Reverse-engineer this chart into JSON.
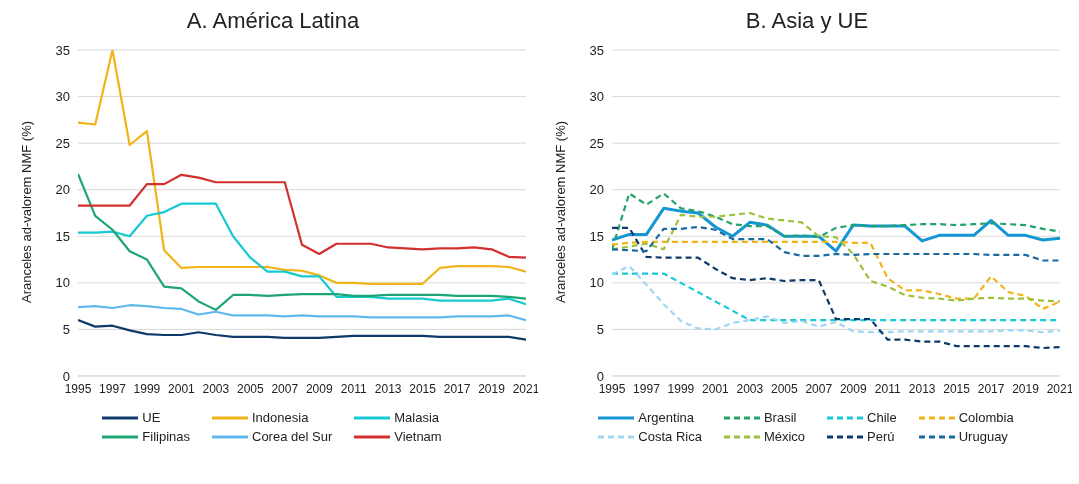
{
  "chart_data": [
    {
      "type": "line",
      "title": "A. América Latina",
      "ylabel": "Aranceles ad-valorem NMF (%)",
      "x": [
        1995,
        1996,
        1997,
        1998,
        1999,
        2000,
        2001,
        2002,
        2003,
        2004,
        2005,
        2006,
        2007,
        2008,
        2009,
        2010,
        2011,
        2012,
        2013,
        2014,
        2015,
        2016,
        2017,
        2018,
        2019,
        2020,
        2021
      ],
      "xlim": [
        1995,
        2021
      ],
      "xticks": [
        1995,
        1997,
        1999,
        2001,
        2003,
        2005,
        2007,
        2009,
        2011,
        2013,
        2015,
        2017,
        2019,
        2021
      ],
      "ylim": [
        0,
        35
      ],
      "yticks": [
        0,
        5,
        10,
        15,
        20,
        25,
        30,
        35
      ],
      "grid": "y",
      "legend": "bottom",
      "marker": "none",
      "series": [
        {
          "name": "UE",
          "color": "#0e3a6a",
          "line_style": "solid",
          "values": [
            6.0,
            5.3,
            5.4,
            4.9,
            4.5,
            4.4,
            4.4,
            4.7,
            4.4,
            4.2,
            4.2,
            4.2,
            4.1,
            4.1,
            4.1,
            4.2,
            4.3,
            4.3,
            4.3,
            4.3,
            4.3,
            4.2,
            4.2,
            4.2,
            4.2,
            4.2,
            3.9
          ]
        },
        {
          "name": "Indonesia",
          "color": "#f0b419",
          "line_style": "solid",
          "values": [
            27.2,
            27.0,
            35.0,
            24.8,
            26.3,
            13.5,
            11.6,
            11.7,
            11.7,
            11.7,
            11.7,
            11.7,
            11.4,
            11.3,
            10.8,
            10.0,
            10.0,
            9.9,
            9.9,
            9.9,
            9.9,
            11.6,
            11.8,
            11.8,
            11.8,
            11.7,
            11.2
          ]
        },
        {
          "name": "Malasia",
          "color": "#17c9d3",
          "line_style": "solid",
          "values": [
            15.4,
            15.4,
            15.5,
            15.0,
            17.2,
            17.6,
            18.5,
            18.5,
            18.5,
            15.0,
            12.7,
            11.2,
            11.2,
            10.7,
            10.7,
            8.5,
            8.5,
            8.5,
            8.3,
            8.3,
            8.3,
            8.1,
            8.1,
            8.1,
            8.1,
            8.3,
            7.7
          ]
        },
        {
          "name": "Filipinas",
          "color": "#1ea672",
          "line_style": "solid",
          "values": [
            21.7,
            17.2,
            15.7,
            13.4,
            12.5,
            9.6,
            9.4,
            8.0,
            7.1,
            8.7,
            8.7,
            8.6,
            8.7,
            8.8,
            8.8,
            8.8,
            8.6,
            8.6,
            8.7,
            8.7,
            8.7,
            8.7,
            8.6,
            8.6,
            8.6,
            8.5,
            8.3
          ]
        },
        {
          "name": "Corea del Sur",
          "color": "#5fb8ec",
          "line_style": "solid",
          "values": [
            7.4,
            7.5,
            7.3,
            7.6,
            7.5,
            7.3,
            7.2,
            6.6,
            6.9,
            6.5,
            6.5,
            6.5,
            6.4,
            6.5,
            6.4,
            6.4,
            6.4,
            6.3,
            6.3,
            6.3,
            6.3,
            6.3,
            6.4,
            6.4,
            6.4,
            6.5,
            6.0
          ]
        },
        {
          "name": "Vietnam",
          "color": "#d2302e",
          "line_style": "solid",
          "values": [
            18.3,
            18.3,
            18.3,
            18.3,
            20.6,
            20.6,
            21.6,
            21.3,
            20.8,
            20.8,
            20.8,
            20.8,
            20.8,
            14.1,
            13.1,
            14.2,
            14.2,
            14.2,
            13.8,
            13.7,
            13.6,
            13.7,
            13.7,
            13.8,
            13.6,
            12.8,
            12.7
          ]
        }
      ]
    },
    {
      "type": "line",
      "title": "B. Asia y UE",
      "ylabel": "Aranceles ad-valorem NMF (%)",
      "x": [
        1995,
        1996,
        1997,
        1998,
        1999,
        2000,
        2001,
        2002,
        2003,
        2004,
        2005,
        2006,
        2007,
        2008,
        2009,
        2010,
        2011,
        2012,
        2013,
        2014,
        2015,
        2016,
        2017,
        2018,
        2019,
        2020,
        2021
      ],
      "xlim": [
        1995,
        2021
      ],
      "xticks": [
        1995,
        1997,
        1999,
        2001,
        2003,
        2005,
        2007,
        2009,
        2011,
        2013,
        2015,
        2017,
        2019,
        2021
      ],
      "ylim": [
        0,
        35
      ],
      "yticks": [
        0,
        5,
        10,
        15,
        20,
        25,
        30,
        35
      ],
      "grid": "y",
      "legend": "bottom",
      "marker": "none",
      "series": [
        {
          "name": "Argentina",
          "color": "#1496d4",
          "line_style": "solid",
          "values": [
            14.6,
            15.2,
            15.2,
            18.0,
            17.7,
            17.5,
            16.0,
            15.0,
            16.5,
            16.2,
            15.0,
            15.0,
            15.0,
            13.4,
            16.2,
            16.1,
            16.1,
            16.1,
            14.5,
            15.1,
            15.1,
            15.1,
            16.7,
            15.1,
            15.1,
            14.6,
            14.8
          ]
        },
        {
          "name": "Brasil",
          "color": "#23a36a",
          "line_style": "dashed",
          "values": [
            13.6,
            19.6,
            18.4,
            19.6,
            18.0,
            17.7,
            17.1,
            16.3,
            16.1,
            16.1,
            15.0,
            15.1,
            14.9,
            15.9,
            16.2,
            16.1,
            16.1,
            16.2,
            16.3,
            16.3,
            16.2,
            16.3,
            16.4,
            16.3,
            16.2,
            15.8,
            15.5
          ]
        },
        {
          "name": "Chile",
          "color": "#17c9d3",
          "line_style": "dashed",
          "values": [
            11.0,
            11.0,
            11.0,
            11.0,
            10.0,
            9.0,
            8.0,
            7.0,
            6.0,
            6.0,
            6.0,
            6.0,
            6.0,
            6.0,
            6.0,
            6.0,
            6.0,
            6.0,
            6.0,
            6.0,
            6.0,
            6.0,
            6.0,
            6.0,
            6.0,
            6.0,
            6.0
          ]
        },
        {
          "name": "Colombia",
          "color": "#f0b419",
          "line_style": "dashed",
          "values": [
            14.1,
            14.3,
            14.4,
            14.4,
            14.4,
            14.4,
            14.4,
            14.4,
            14.4,
            14.4,
            14.4,
            14.4,
            14.4,
            14.4,
            14.3,
            14.3,
            10.5,
            9.2,
            9.2,
            8.8,
            8.3,
            8.3,
            10.7,
            9.0,
            8.6,
            7.2,
            8.0
          ]
        },
        {
          "name": "Costa Rica",
          "color": "#9fd6f2",
          "line_style": "dashed",
          "values": [
            10.9,
            11.8,
            9.8,
            7.7,
            5.9,
            5.1,
            5.0,
            5.7,
            6.0,
            6.4,
            5.7,
            5.9,
            5.3,
            5.8,
            4.8,
            4.7,
            4.7,
            4.8,
            4.8,
            4.8,
            4.8,
            4.8,
            4.8,
            4.9,
            4.9,
            4.7,
            4.9
          ]
        },
        {
          "name": "México",
          "color": "#9cc23c",
          "line_style": "dashed",
          "values": [
            13.6,
            13.9,
            14.2,
            13.6,
            17.3,
            17.1,
            17.1,
            17.3,
            17.5,
            16.9,
            16.7,
            16.5,
            15.0,
            14.9,
            13.1,
            10.2,
            9.6,
            8.7,
            8.4,
            8.3,
            8.1,
            8.3,
            8.4,
            8.3,
            8.3,
            8.1,
            8.0
          ]
        },
        {
          "name": "Perú",
          "color": "#0e3a6a",
          "line_style": "dashed",
          "values": [
            15.9,
            15.9,
            12.8,
            12.7,
            12.7,
            12.7,
            11.5,
            10.5,
            10.3,
            10.5,
            10.2,
            10.3,
            10.3,
            6.1,
            6.1,
            6.1,
            3.9,
            3.9,
            3.7,
            3.7,
            3.2,
            3.2,
            3.2,
            3.2,
            3.2,
            3.0,
            3.1
          ]
        },
        {
          "name": "Uruguay",
          "color": "#1a6aa0",
          "line_style": "dashed",
          "values": [
            13.6,
            13.5,
            13.4,
            15.8,
            15.8,
            16.0,
            15.7,
            14.7,
            14.7,
            14.7,
            13.3,
            12.9,
            12.9,
            13.1,
            13.0,
            13.1,
            13.1,
            13.1,
            13.1,
            13.1,
            13.1,
            13.1,
            13.0,
            13.0,
            13.0,
            12.4,
            12.4
          ]
        }
      ]
    }
  ]
}
